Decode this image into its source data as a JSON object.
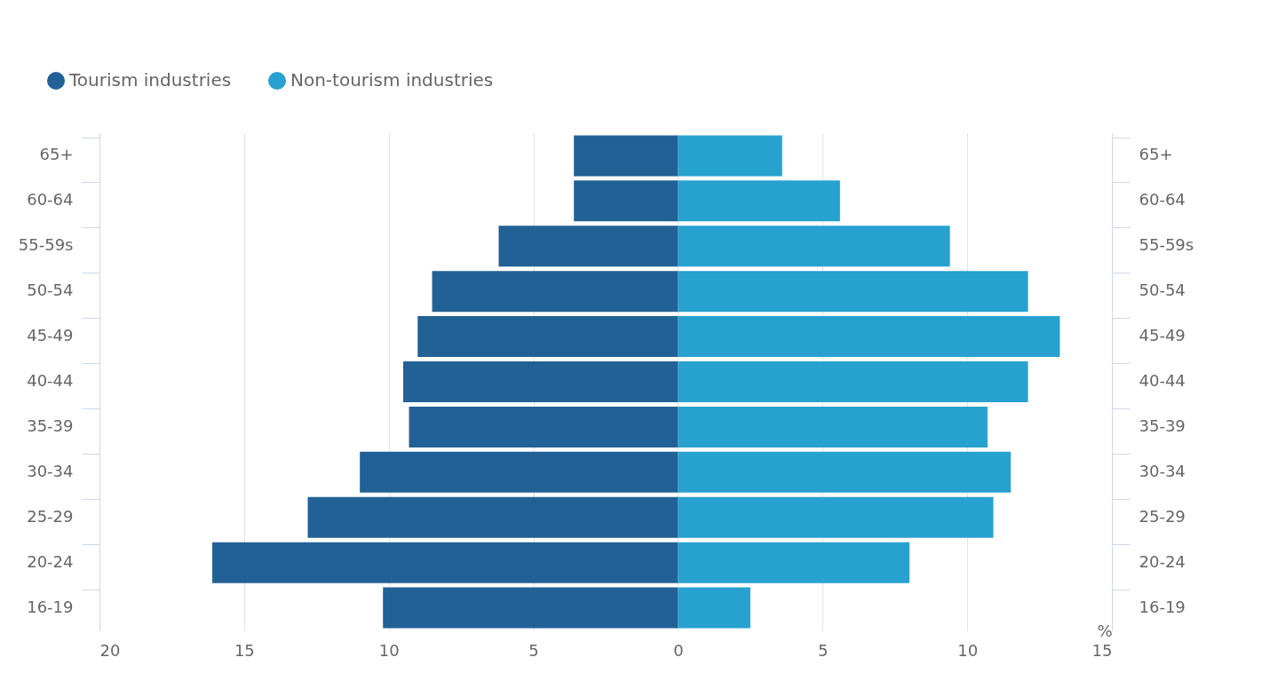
{
  "chart_data": {
    "type": "bar",
    "orientation": "horizontal",
    "stacked": true,
    "categories": [
      "65+",
      "60-64",
      "55-59s",
      "50-54",
      "45-49",
      "40-44",
      "35-39",
      "30-34",
      "25-29",
      "20-24",
      "16-19"
    ],
    "series": [
      {
        "name": "Tourism industries",
        "color": "#226195",
        "values": [
          -3.6,
          -3.6,
          -6.2,
          -8.5,
          -9.0,
          -9.5,
          -9.3,
          -11.0,
          -12.8,
          -16.1,
          -10.2
        ]
      },
      {
        "name": "Non-tourism industries",
        "color": "#27a1cf",
        "values": [
          3.6,
          5.6,
          9.4,
          12.1,
          13.2,
          12.1,
          10.7,
          11.5,
          10.9,
          8.0,
          2.5
        ]
      }
    ],
    "xlabel": "%",
    "xlim": [
      -20,
      15
    ],
    "xticks": [
      {
        "value": -20,
        "label": "20"
      },
      {
        "value": -15,
        "label": "15"
      },
      {
        "value": -10,
        "label": "10"
      },
      {
        "value": -5,
        "label": "5"
      },
      0,
      5,
      10,
      15
    ],
    "grid": "x",
    "legend": "top left"
  }
}
